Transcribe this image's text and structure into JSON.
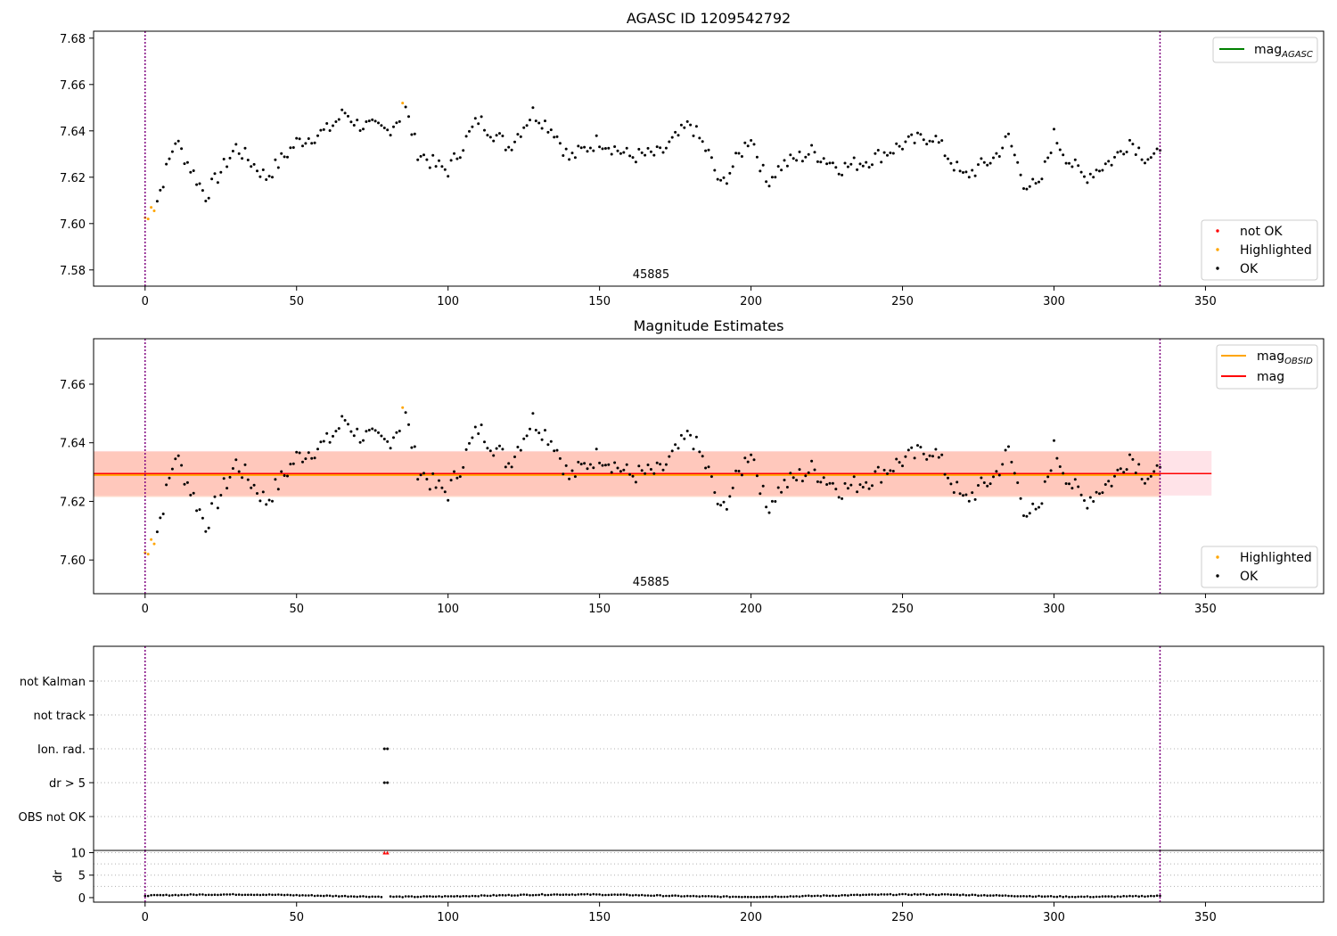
{
  "chart_data": [
    {
      "type": "scatter",
      "title": "AGASC ID 1209542792",
      "xlim": [
        -17,
        389
      ],
      "ylim": [
        7.573,
        7.683
      ],
      "xticks": [
        0,
        50,
        100,
        150,
        200,
        250,
        300,
        350
      ],
      "yticks": [
        7.58,
        7.6,
        7.62,
        7.64,
        7.66,
        7.68
      ],
      "obsid_label": "45885",
      "obsid_x": 167,
      "vlines": [
        0,
        335
      ],
      "lines": [
        {
          "name": "mag_AGASC",
          "color": "#008000"
        }
      ],
      "legend_upper": {
        "position": "top-right",
        "entries": [
          {
            "label": "mag",
            "sub": "AGASC",
            "color": "#008000"
          }
        ]
      },
      "legend_lower": {
        "position": "lower-right",
        "entries": [
          {
            "label": "not OK",
            "color": "#ff0000"
          },
          {
            "label": "Highlighted",
            "color": "#ffa500"
          },
          {
            "label": "OK",
            "color": "#000000"
          }
        ]
      },
      "highlighted": {
        "x": [
          0,
          1,
          2,
          3,
          85
        ],
        "y": [
          7.6025,
          7.602,
          7.607,
          7.6055,
          7.652
        ]
      },
      "ok": {
        "x": [
          0,
          4,
          10,
          20,
          30,
          40,
          50,
          60,
          66,
          70,
          80,
          86,
          90,
          96,
          100,
          110,
          120,
          128,
          135,
          140,
          150,
          160,
          170,
          180,
          186,
          190,
          200,
          205,
          210,
          220,
          230,
          240,
          250,
          260,
          270,
          280,
          285,
          290,
          295,
          300,
          305,
          310,
          320,
          325,
          330,
          335
        ],
        "y": [
          7.603,
          7.61,
          7.636,
          7.612,
          7.633,
          7.62,
          7.635,
          7.64,
          7.648,
          7.643,
          7.64,
          7.649,
          7.631,
          7.625,
          7.623,
          7.645,
          7.633,
          7.648,
          7.64,
          7.628,
          7.636,
          7.629,
          7.63,
          7.643,
          7.63,
          7.616,
          7.638,
          7.618,
          7.625,
          7.631,
          7.624,
          7.628,
          7.634,
          7.638,
          7.62,
          7.628,
          7.637,
          7.618,
          7.615,
          7.638,
          7.627,
          7.62,
          7.628,
          7.636,
          7.629,
          7.629
        ],
        "pattern": "continuous"
      }
    },
    {
      "type": "scatter",
      "title": "Magnitude Estimates",
      "xlim": [
        -17,
        389
      ],
      "ylim": [
        7.5885,
        7.6755
      ],
      "xticks": [
        0,
        50,
        100,
        150,
        200,
        250,
        300,
        350
      ],
      "yticks": [
        7.6,
        7.62,
        7.64,
        7.66
      ],
      "obsid_label": "45885",
      "obsid_x": 167,
      "vlines": [
        0,
        335
      ],
      "mag_line": {
        "y": 7.6295,
        "color": "#ff0000"
      },
      "mag_obsid_line": {
        "y": 7.629,
        "color": "#ffa500"
      },
      "bands": [
        {
          "name": "mag band",
          "y": [
            7.622,
            7.6372
          ],
          "x": [
            -17,
            352
          ],
          "color": "#ffc0cb"
        },
        {
          "name": "obsid band",
          "y": [
            7.6215,
            7.637
          ],
          "x": [
            -17,
            335
          ],
          "color": "#ffa07a"
        }
      ],
      "legend_upper": {
        "position": "top-right",
        "entries": [
          {
            "label": "mag",
            "sub": "OBSID",
            "color": "#ffa500"
          },
          {
            "label": "mag",
            "sub": "",
            "color": "#ff0000"
          }
        ]
      },
      "legend_lower": {
        "position": "lower-right",
        "entries": [
          {
            "label": "Highlighted",
            "color": "#ffa500"
          },
          {
            "label": "OK",
            "color": "#000000"
          }
        ]
      }
    },
    {
      "type": "scatter",
      "title": "",
      "xlim": [
        -17,
        389
      ],
      "xticks": [
        0,
        50,
        100,
        150,
        200,
        250,
        300,
        350
      ],
      "categories": [
        "not Kalman",
        "not track",
        "Ion. rad.",
        "dr > 5",
        "OBS not OK"
      ],
      "flags": [
        {
          "category": "Ion. rad.",
          "x": [
            79,
            80
          ]
        },
        {
          "category": "dr > 5",
          "x": [
            79,
            80
          ]
        }
      ],
      "vlines": [
        0,
        335
      ]
    },
    {
      "type": "scatter",
      "title": "",
      "ylabel": "dr",
      "xlim": [
        -17,
        389
      ],
      "ylim": [
        -1,
        10.5
      ],
      "xticks": [
        0,
        50,
        100,
        150,
        200,
        250,
        300,
        350
      ],
      "yticks": [
        0,
        5,
        10
      ],
      "red_points": {
        "x": [
          79,
          80
        ],
        "y": [
          10,
          10
        ]
      },
      "vlines": [
        0,
        335
      ]
    }
  ],
  "labels": {
    "mag": "mag",
    "sub_agasc": "AGASC",
    "sub_obsid": "OBSID"
  }
}
